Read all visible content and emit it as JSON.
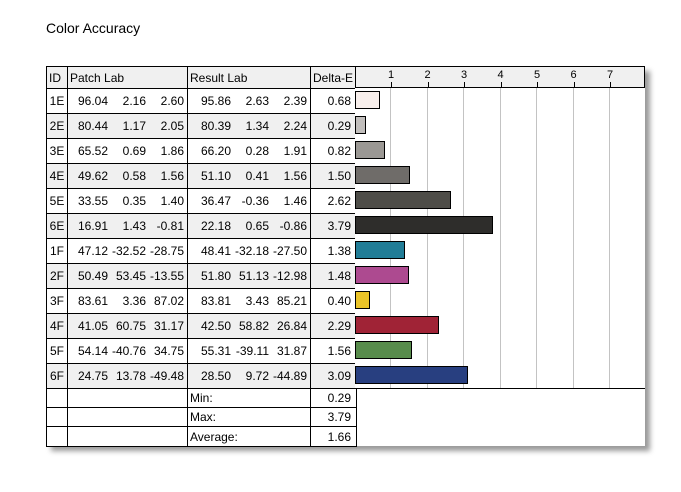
{
  "title": "Color Accuracy",
  "table": {
    "columns": [
      "ID",
      "Patch Lab",
      "Result Lab",
      "Delta-E"
    ],
    "rows": [
      {
        "id": "1E",
        "patch": [
          "96.04",
          "2.16",
          "2.60"
        ],
        "result": [
          "95.86",
          "2.63",
          "2.39"
        ],
        "delta": "0.68"
      },
      {
        "id": "2E",
        "patch": [
          "80.44",
          "1.17",
          "2.05"
        ],
        "result": [
          "80.39",
          "1.34",
          "2.24"
        ],
        "delta": "0.29"
      },
      {
        "id": "3E",
        "patch": [
          "65.52",
          "0.69",
          "1.86"
        ],
        "result": [
          "66.20",
          "0.28",
          "1.91"
        ],
        "delta": "0.82"
      },
      {
        "id": "4E",
        "patch": [
          "49.62",
          "0.58",
          "1.56"
        ],
        "result": [
          "51.10",
          "0.41",
          "1.56"
        ],
        "delta": "1.50"
      },
      {
        "id": "5E",
        "patch": [
          "33.55",
          "0.35",
          "1.40"
        ],
        "result": [
          "36.47",
          "-0.36",
          "1.46"
        ],
        "delta": "2.62"
      },
      {
        "id": "6E",
        "patch": [
          "16.91",
          "1.43",
          "-0.81"
        ],
        "result": [
          "22.18",
          "0.65",
          "-0.86"
        ],
        "delta": "3.79"
      },
      {
        "id": "1F",
        "patch": [
          "47.12",
          "-32.52",
          "-28.75"
        ],
        "result": [
          "48.41",
          "-32.18",
          "-27.50"
        ],
        "delta": "1.38"
      },
      {
        "id": "2F",
        "patch": [
          "50.49",
          "53.45",
          "-13.55"
        ],
        "result": [
          "51.80",
          "51.13",
          "-12.98"
        ],
        "delta": "1.48"
      },
      {
        "id": "3F",
        "patch": [
          "83.61",
          "3.36",
          "87.02"
        ],
        "result": [
          "83.81",
          "3.43",
          "85.21"
        ],
        "delta": "0.40"
      },
      {
        "id": "4F",
        "patch": [
          "41.05",
          "60.75",
          "31.17"
        ],
        "result": [
          "42.50",
          "58.82",
          "26.84"
        ],
        "delta": "2.29"
      },
      {
        "id": "5F",
        "patch": [
          "54.14",
          "-40.76",
          "34.75"
        ],
        "result": [
          "55.31",
          "-39.11",
          "31.87"
        ],
        "delta": "1.56"
      },
      {
        "id": "6F",
        "patch": [
          "24.75",
          "13.78",
          "-49.48"
        ],
        "result": [
          "28.50",
          "9.72",
          "-44.89"
        ],
        "delta": "3.09"
      }
    ],
    "summary": [
      {
        "label": "Min:",
        "value": "0.29"
      },
      {
        "label": "Max:",
        "value": "3.79"
      },
      {
        "label": "Average:",
        "value": "1.66"
      }
    ]
  },
  "chart_data": {
    "type": "bar",
    "orientation": "horizontal",
    "title": "Color Accuracy",
    "value_label": "Delta-E",
    "categories": [
      "1E",
      "2E",
      "3E",
      "4E",
      "5E",
      "6E",
      "1F",
      "2F",
      "3F",
      "4F",
      "5F",
      "6F"
    ],
    "values": [
      0.68,
      0.29,
      0.82,
      1.5,
      2.62,
      3.79,
      1.38,
      1.48,
      0.4,
      2.29,
      1.56,
      3.09
    ],
    "bar_colors": [
      "#f8efec",
      "#c1bebc",
      "#9b9894",
      "#6f6c69",
      "#4e4d48",
      "#2e2d2b",
      "#217d97",
      "#ad4a90",
      "#ebc428",
      "#a02336",
      "#588c4c",
      "#283f80"
    ],
    "min": 0.29,
    "max": 3.79,
    "average": 1.66,
    "x_ticks": [
      1,
      2,
      3,
      4,
      5,
      6,
      7
    ],
    "xlim": [
      0,
      7.95
    ],
    "grid": true,
    "legend": false,
    "gridline_color": "#c3c3c3",
    "header_bg": "#f0f0f0",
    "border_color": "#000000"
  }
}
